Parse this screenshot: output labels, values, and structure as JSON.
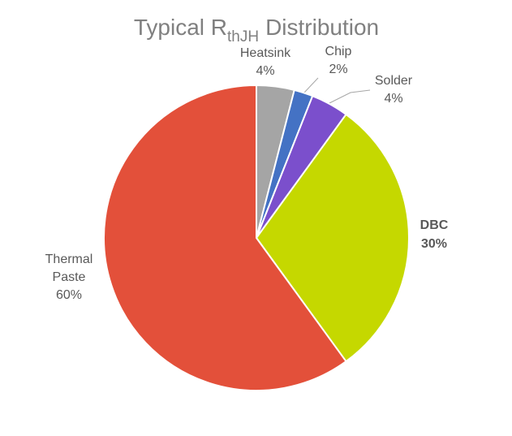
{
  "chart_data": {
    "type": "pie",
    "title": {
      "main": "Typical R",
      "subscript": "thJH",
      "rest": "Distribution"
    },
    "categories": [
      "Heatsink",
      "Chip",
      "Solder",
      "DBC",
      "Thermal Paste"
    ],
    "values": [
      4,
      2,
      4,
      30,
      60
    ],
    "value_labels": [
      "4%",
      "2%",
      "4%",
      "30%",
      "60%"
    ],
    "colors": [
      "#a5a5a5",
      "#4472c4",
      "#7b4fcc",
      "#c5d800",
      "#e3503a"
    ]
  }
}
